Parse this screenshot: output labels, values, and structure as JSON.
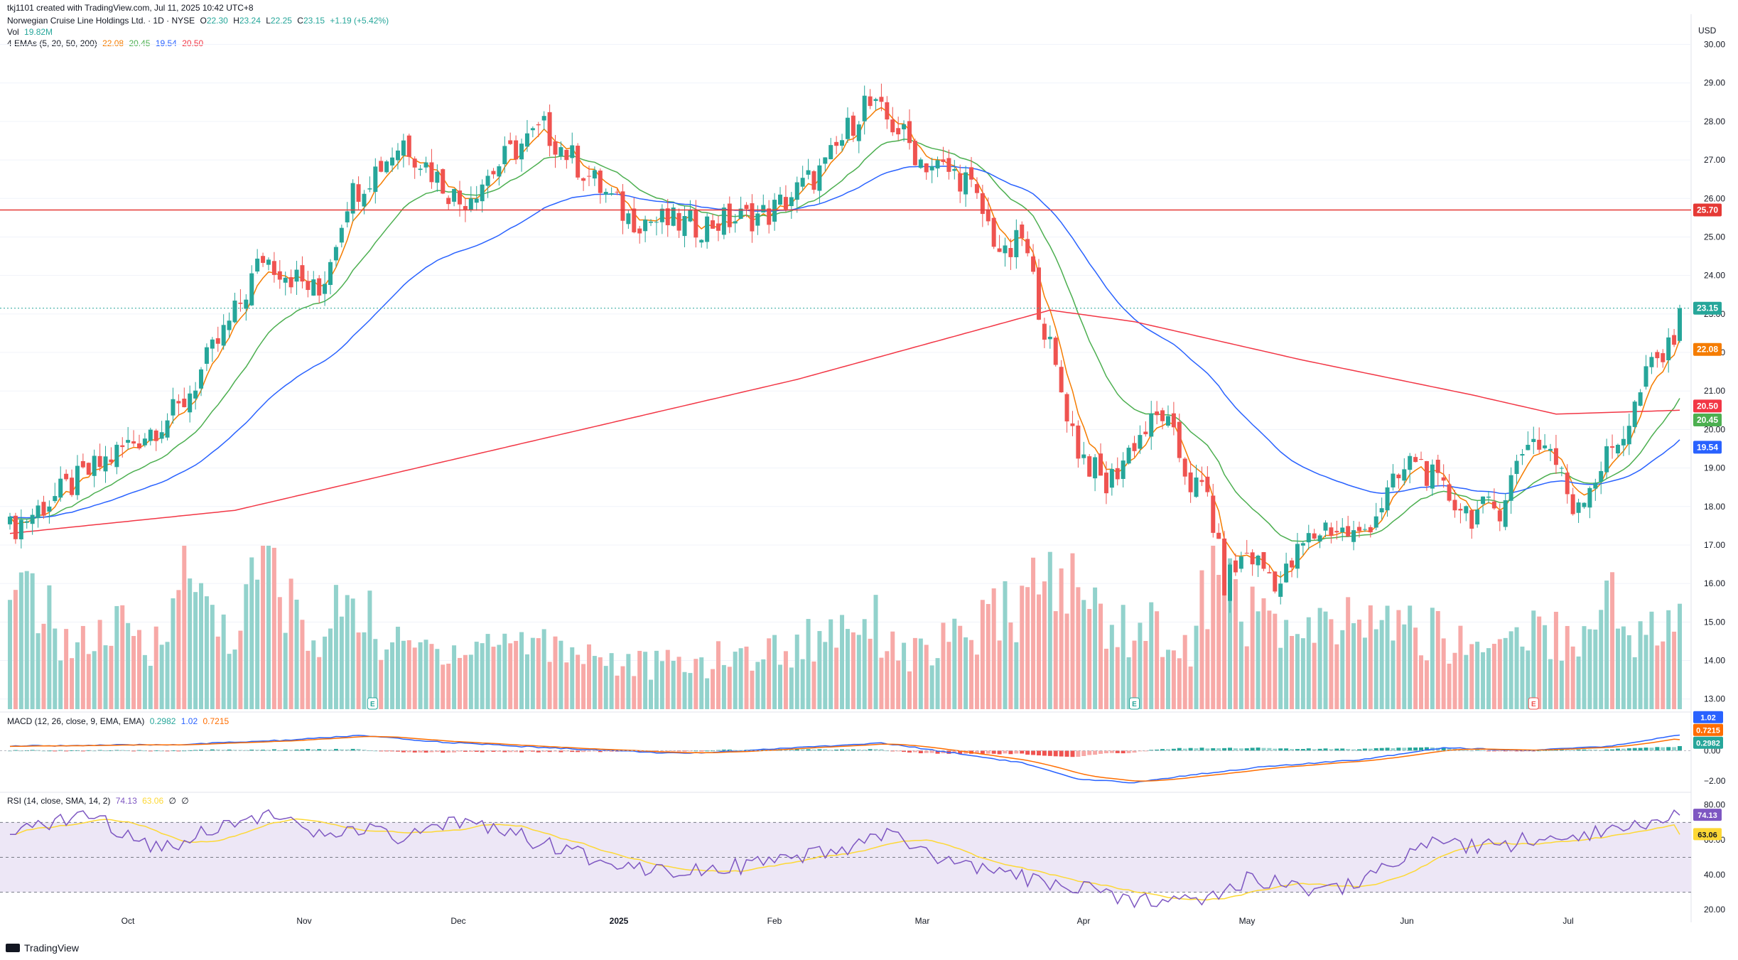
{
  "header": {
    "creator": "tkj1101 created with TradingView.com, Jul 11, 2025 10:42 UTC+8",
    "symbol_line": "Norwegian Cruise Line Holdings Ltd. · 1D · NYSE",
    "ohlc": {
      "o_label": "O",
      "o": "22.30",
      "h_label": "H",
      "h": "23.24",
      "l_label": "L",
      "l": "22.25",
      "c_label": "C",
      "c": "23.15",
      "change": "+1.19 (+5.42%)"
    },
    "vol_label": "Vol",
    "vol_value": "19.82M",
    "ema_label": "4 EMAs (5, 20, 50, 200)",
    "ema_values": [
      "22.08",
      "20.45",
      "19.54",
      "20.50"
    ],
    "macd_label": "MACD (12, 26, close, 9, EMA, EMA)",
    "macd_values": [
      "0.2982",
      "1.02",
      "0.7215"
    ],
    "rsi_label": "RSI (14, close, SMA, 14, 2)",
    "rsi_values": [
      "74.13",
      "63.06",
      "∅",
      "∅"
    ]
  },
  "currency": "USD",
  "footer_brand": "TradingView",
  "colors": {
    "up": "#26a69a",
    "down": "#ef5350",
    "vol_up": "#92d2cc",
    "vol_down": "#f7a9a7",
    "ema5": "#f57c00",
    "ema20": "#4caf50",
    "ema50": "#2962ff",
    "ema200": "#f23645",
    "level_line": "#e53935",
    "macd_line": "#2962ff",
    "signal_line": "#ff6d00",
    "rsi_line": "#7e57c2",
    "rsi_ma": "#fdd835",
    "rsi_band": "#ede7f6"
  },
  "chart_data": {
    "type": "candlestick",
    "ylim": [
      12.7,
      30.6
    ],
    "yticks": [
      "30.00",
      "29.00",
      "28.00",
      "27.00",
      "26.00",
      "25.00",
      "24.00",
      "23.00",
      "22.00",
      "21.00",
      "20.00",
      "19.00",
      "18.00",
      "17.00",
      "16.00",
      "15.00",
      "14.00",
      "13.00"
    ],
    "x_labels": [
      "Oct",
      "Nov",
      "Dec",
      "2025",
      "Feb",
      "Mar",
      "Apr",
      "May",
      "Jun",
      "Jul"
    ],
    "horizontal_line": 25.7,
    "price_badges": {
      "level": "25.70",
      "last": "23.15",
      "ema5": "22.08",
      "ema200": "20.50",
      "ema20": "20.45",
      "ema50": "19.54"
    },
    "series": [
      {
        "name": "price",
        "anchors": [
          [
            0,
            17.4
          ],
          [
            20,
            19.5
          ],
          [
            30,
            20.5
          ],
          [
            40,
            23.0
          ],
          [
            45,
            24.5
          ],
          [
            55,
            23.5
          ],
          [
            60,
            26.0
          ],
          [
            70,
            27.5
          ],
          [
            80,
            25.9
          ],
          [
            90,
            27.3
          ],
          [
            95,
            27.8
          ],
          [
            110,
            25.5
          ],
          [
            122,
            25.3
          ],
          [
            135,
            25.6
          ],
          [
            145,
            26.8
          ],
          [
            152,
            28.5
          ],
          [
            158,
            27.8
          ],
          [
            162,
            27.0
          ],
          [
            170,
            26.5
          ],
          [
            177,
            24.4
          ],
          [
            180,
            25.0
          ],
          [
            186,
            21.5
          ],
          [
            190,
            19.5
          ],
          [
            195,
            18.5
          ],
          [
            200,
            19.7
          ],
          [
            205,
            20.4
          ],
          [
            210,
            18.6
          ],
          [
            213,
            18.3
          ],
          [
            216,
            16.0
          ],
          [
            220,
            16.8
          ],
          [
            226,
            16.0
          ],
          [
            230,
            17.0
          ],
          [
            234,
            17.5
          ],
          [
            240,
            17.2
          ],
          [
            245,
            18.3
          ],
          [
            250,
            19.3
          ],
          [
            254,
            18.5
          ],
          [
            260,
            17.8
          ],
          [
            265,
            18.0
          ],
          [
            270,
            19.8
          ],
          [
            274,
            19.5
          ],
          [
            278,
            18.0
          ],
          [
            282,
            18.8
          ],
          [
            288,
            20.2
          ],
          [
            292,
            21.7
          ],
          [
            295,
            22.0
          ],
          [
            297,
            23.15
          ]
        ]
      },
      {
        "name": "volume_millions",
        "anchors": [
          [
            0,
            10
          ],
          [
            4,
            14
          ],
          [
            8,
            9
          ],
          [
            12,
            7
          ],
          [
            20,
            9
          ],
          [
            25,
            6
          ],
          [
            30,
            16
          ],
          [
            40,
            8
          ],
          [
            45,
            17
          ],
          [
            55,
            6
          ],
          [
            60,
            14
          ],
          [
            67,
            7
          ],
          [
            80,
            7
          ],
          [
            90,
            8
          ],
          [
            100,
            7
          ],
          [
            110,
            5
          ],
          [
            120,
            5
          ],
          [
            130,
            6
          ],
          [
            140,
            7
          ],
          [
            152,
            11
          ],
          [
            160,
            6
          ],
          [
            170,
            8
          ],
          [
            180,
            12
          ],
          [
            186,
            15
          ],
          [
            190,
            13
          ],
          [
            195,
            10
          ],
          [
            200,
            9
          ],
          [
            205,
            9
          ],
          [
            210,
            6
          ],
          [
            214,
            17
          ],
          [
            220,
            11
          ],
          [
            230,
            8
          ],
          [
            240,
            10
          ],
          [
            250,
            9
          ],
          [
            260,
            7
          ],
          [
            270,
            9
          ],
          [
            280,
            8
          ],
          [
            285,
            13
          ],
          [
            290,
            8
          ],
          [
            297,
            10
          ]
        ]
      },
      {
        "name": "macd",
        "anchors": [
          [
            0,
            0.3
          ],
          [
            30,
            0.4
          ],
          [
            50,
            0.7
          ],
          [
            62,
            1.0
          ],
          [
            75,
            0.6
          ],
          [
            95,
            0.2
          ],
          [
            120,
            -0.2
          ],
          [
            135,
            0.1
          ],
          [
            145,
            0.3
          ],
          [
            155,
            0.5
          ],
          [
            165,
            0.0
          ],
          [
            180,
            -0.8
          ],
          [
            190,
            -1.9
          ],
          [
            200,
            -2.1
          ],
          [
            210,
            -1.6
          ],
          [
            222,
            -1.1
          ],
          [
            240,
            -0.6
          ],
          [
            255,
            0.2
          ],
          [
            270,
            0.0
          ],
          [
            285,
            0.3
          ],
          [
            297,
            1.02
          ]
        ]
      },
      {
        "name": "rsi",
        "anchors": [
          [
            0,
            60
          ],
          [
            5,
            68
          ],
          [
            13,
            75
          ],
          [
            20,
            65
          ],
          [
            27,
            55
          ],
          [
            35,
            66
          ],
          [
            45,
            75
          ],
          [
            55,
            62
          ],
          [
            62,
            66
          ],
          [
            70,
            60
          ],
          [
            82,
            72
          ],
          [
            100,
            52
          ],
          [
            115,
            43
          ],
          [
            135,
            46
          ],
          [
            150,
            55
          ],
          [
            156,
            65
          ],
          [
            165,
            48
          ],
          [
            180,
            38
          ],
          [
            190,
            33
          ],
          [
            198,
            25
          ],
          [
            205,
            27
          ],
          [
            215,
            28
          ],
          [
            220,
            38
          ],
          [
            235,
            30
          ],
          [
            245,
            45
          ],
          [
            255,
            60
          ],
          [
            262,
            55
          ],
          [
            270,
            60
          ],
          [
            285,
            66
          ],
          [
            292,
            72
          ],
          [
            297,
            74.13
          ]
        ]
      }
    ],
    "rsi_ticks": [
      "80.00",
      "60.00",
      "40.00",
      "20.00"
    ],
    "macd_ticks": [
      "2.00",
      "0.00",
      "-2.00"
    ]
  }
}
